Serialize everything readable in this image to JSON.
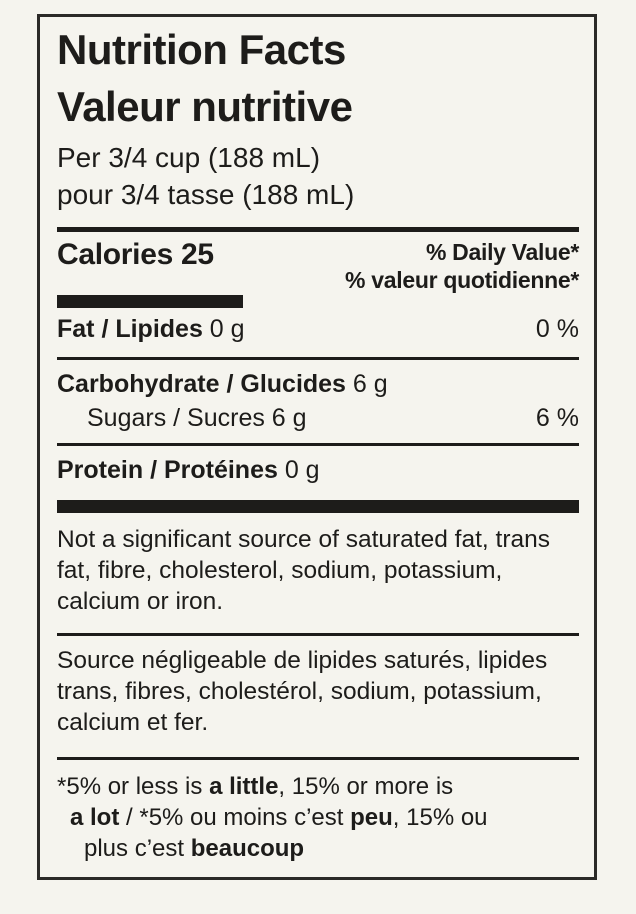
{
  "label": {
    "title_en": "Nutrition Facts",
    "title_fr": "Valeur nutritive",
    "serving_en": "Per 3/4 cup (188 mL)",
    "serving_fr": "pour 3/4 tasse (188 mL)",
    "calories": "Calories 25",
    "dv_header_en": "% Daily Value*",
    "dv_header_fr": "% valeur quotidienne*",
    "rows": {
      "fat": {
        "name_bold": "Fat / Lipides",
        "amount": " 0 g",
        "dv": "0 %"
      },
      "carb": {
        "name_bold": "Carbohydrate / Glucides",
        "amount": " 6 g",
        "dv": ""
      },
      "sugars": {
        "name": "Sugars / Sucres 6 g",
        "dv": "6 %"
      },
      "protein": {
        "name_bold": "Protein / Protéines",
        "amount": " 0 g",
        "dv": ""
      }
    },
    "note_en": "Not a significant source of saturated fat, trans fat, fibre, cholesterol, sodium, potassium, calcium or iron.",
    "note_fr": "Source négligeable de lipides saturés, lipides trans, fibres, cholestérol, sodium, potassium, calcium et fer.",
    "footnote": {
      "l1_pre": "*5% or less is ",
      "l1_bold": "a little",
      "l1_post": ", 15% or more is",
      "l2_bold1": "a lot",
      "l2_mid": " / *5% ou moins c’est ",
      "l2_bold2": "peu",
      "l2_post": ", 15% ou",
      "l3_pre": "plus c’est ",
      "l3_bold": "beaucoup"
    },
    "colors": {
      "background": "#f5f4ee",
      "ink": "#1d1c1a"
    }
  }
}
